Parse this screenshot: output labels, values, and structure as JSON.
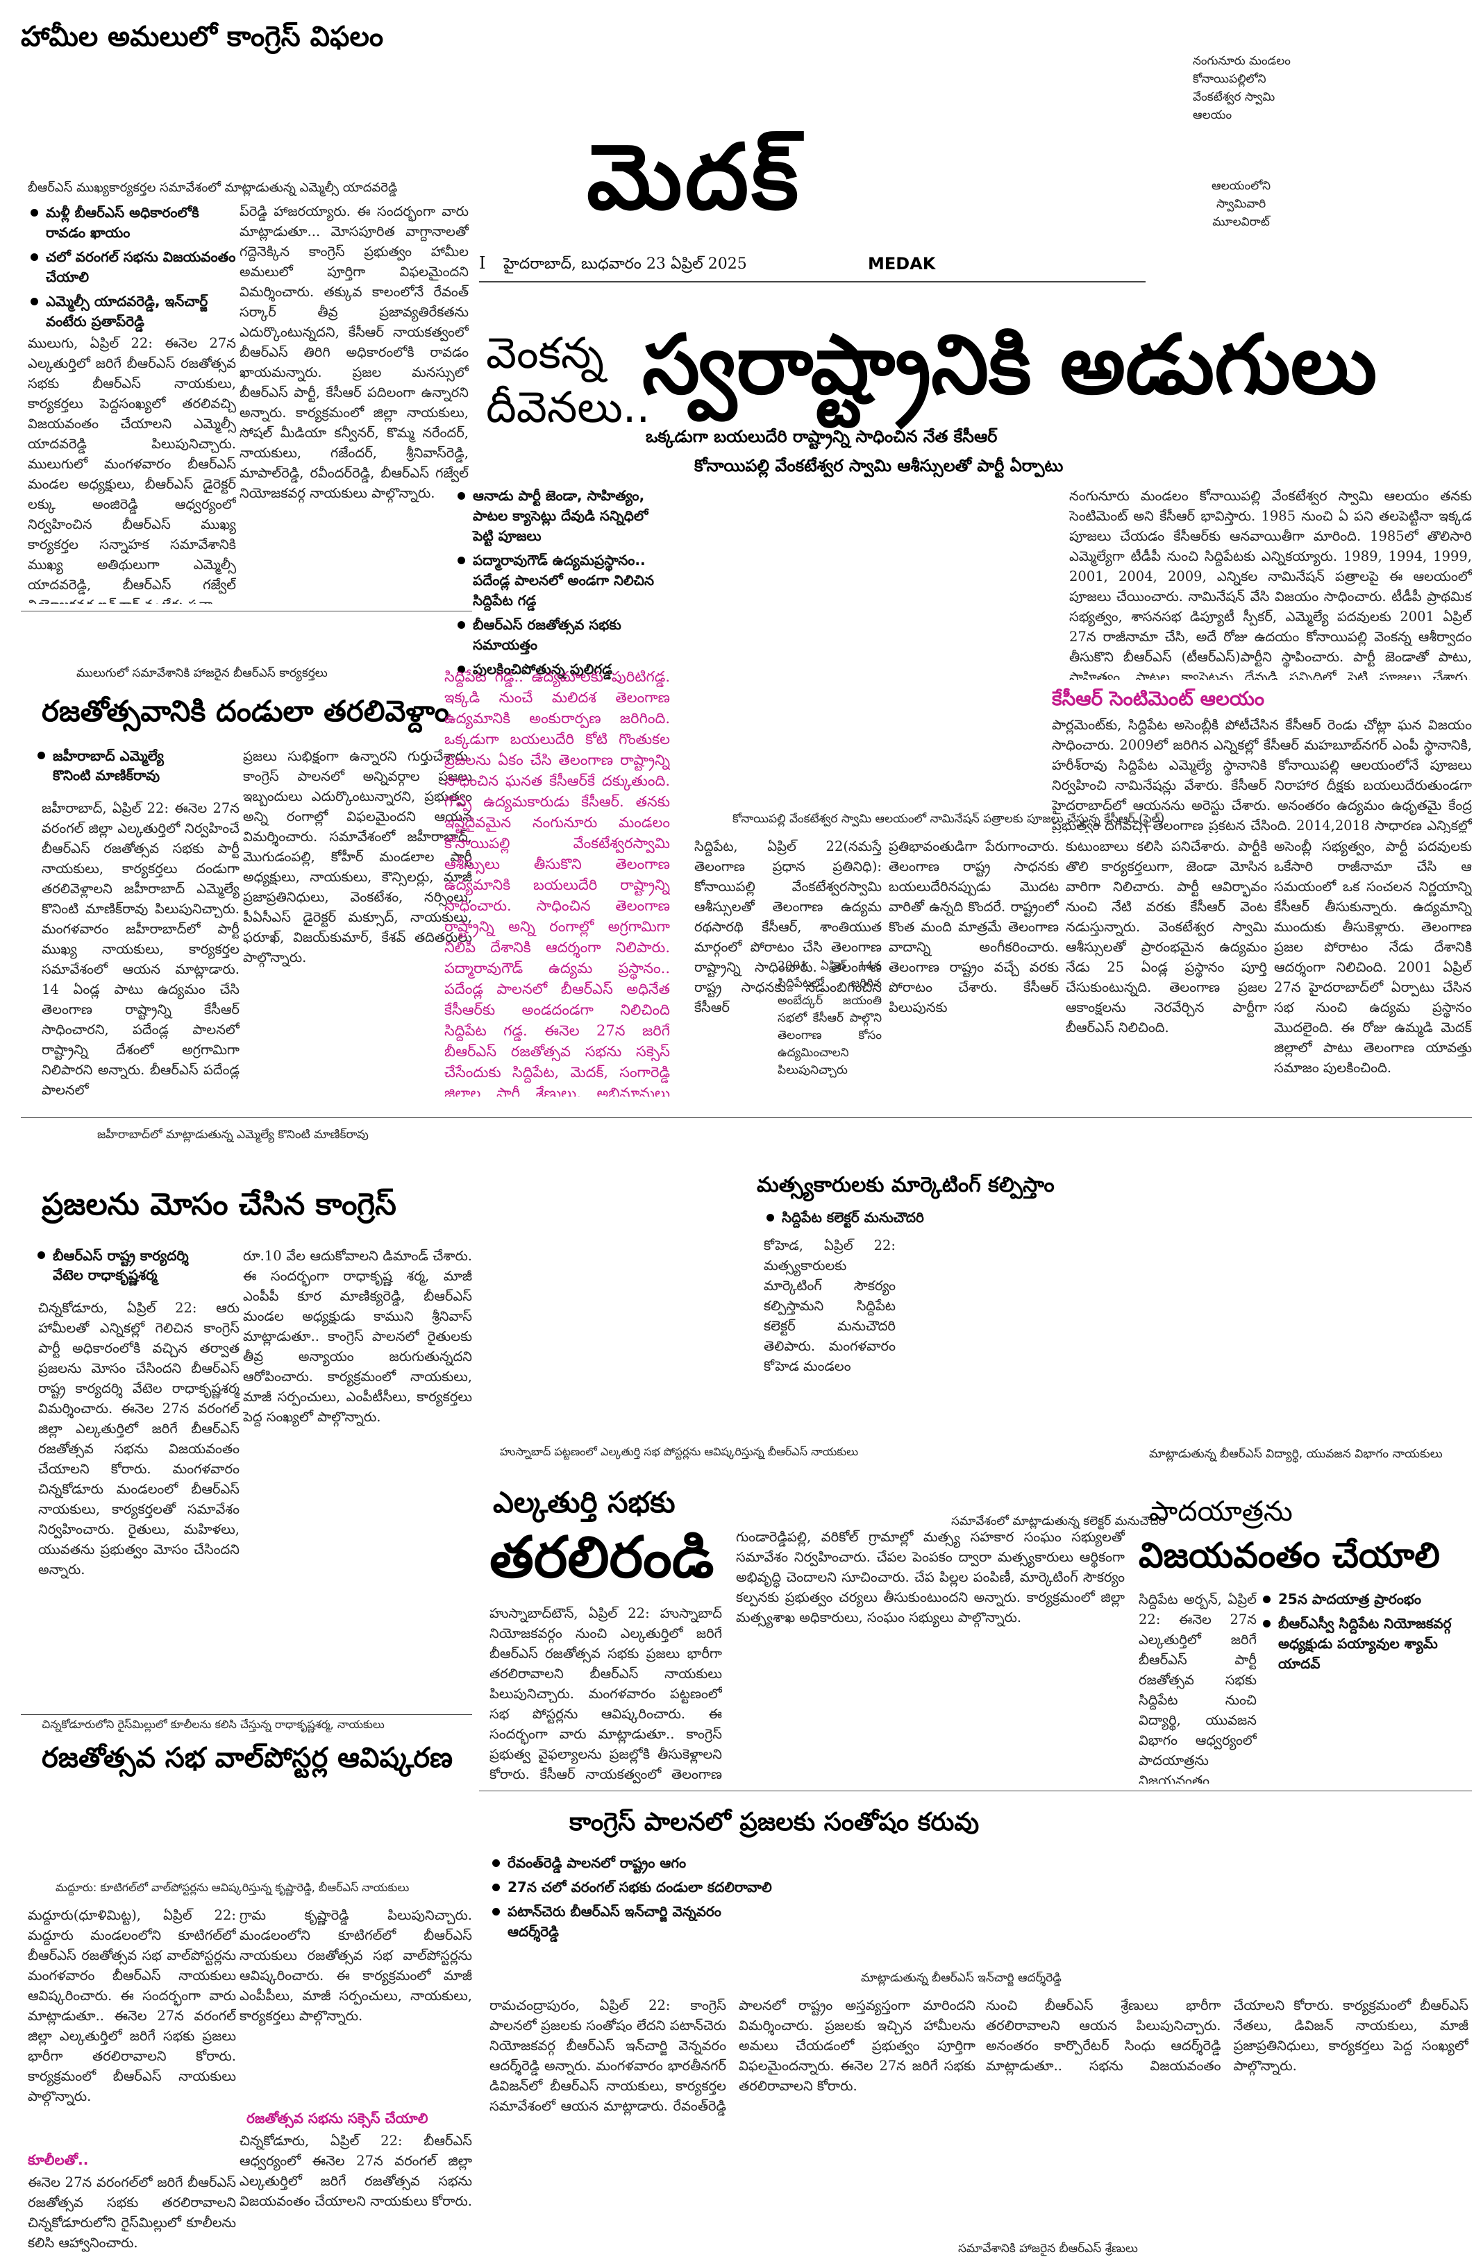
{
  "masthead": {
    "title": "మెదక్",
    "dateline": "హైదరాబాద్, బుధవారం 23 ఏప్రిల్ 2025",
    "edition": "MEDAK",
    "page_mark": "I"
  },
  "top_right_photo_caption": {
    "line1": "నంగునూరు మండలం",
    "line2": "కోనాయిపల్లిలోని",
    "line3": "వేంకటేశ్వర స్వామి",
    "line4": "ఆలయం",
    "inner1": "ఆలయంలోని",
    "inner2": "స్వామివారి",
    "inner3": "మూలవిరాట్"
  },
  "story_congress_failure": {
    "headline": "హామీల అమలులో కాంగ్రెస్ విఫలం",
    "photo_caption": "బీఆర్ఎస్ ముఖ్యకార్యకర్తల సమావేశంలో మాట్లాడుతున్న ఎమ్మెల్సీ యాదవరెడ్డి",
    "bullets": [
      "మళ్లీ బీఆర్ఎస్ అధికారంలోకి రావడం ఖాయం",
      "చలో వరంగల్ సభను విజయవంతం చేయాలి",
      "ఎమ్మెల్సీ యాదవరెడ్డి, ఇన్‌చార్జ్ వంటేరు ప్రతాప్‌రెడ్డి"
    ],
    "body_left": "ములుగు, ఏప్రిల్ 22: ఈనెల 27న ఎల్కతుర్తిలో జరిగే బీఆర్ఎస్ రజతోత్సవ సభకు బీఆర్ఎస్ నాయకులు, కార్యకర్తలు పెద్దసంఖ్యలో తరలివచ్చి విజయవంతం చేయాలని ఎమ్మెల్సీ యాదవరెడ్డి పిలుపునిచ్చారు. ములుగులో మంగళవారం బీఆర్ఎస్ మండల అధ్యక్షులు, బీఆర్ఎస్ డైరెక్టర్ లక్కు అంజిరెడ్డి ఆధ్వర్యంలో నిర్వహించిన బీఆర్ఎస్ ముఖ్య కార్యకర్తల సన్నాహక సమావేశానికి ముఖ్య అతిథులుగా ఎమ్మెల్సీ యాదవరెడ్డి, బీఆర్ఎస్ గజ్వేల్ నియోజకవర్గ ఇన్‌చార్జ్ వంటేరు ప్రతా",
    "body_right": "ప్‌రెడ్డి హాజరయ్యారు. ఈ సందర్భంగా వారు మాట్లాడుతూ... మోసపూరిత వాగ్దానాలతో గద్దెనెక్కిన కాంగ్రెస్ ప్రభుత్వం హామీల అమలులో పూర్తిగా విఫలమైందని విమర్శించారు. తక్కువ కాలంలోనే రేవంత్ సర్కార్ తీవ్ర ప్రజావ్యతిరేకతను ఎదుర్కొంటున్నదని, కేసీఆర్ నాయకత్వంలో బీఆర్ఎస్ తిరిగి అధికారంలోకి రావడం ఖాయమన్నారు. ప్రజల మనస్సులో బీఆర్ఎస్ పార్టీ, కేసీఆర్ పదిలంగా ఉన్నారని అన్నారు. కార్యక్రమంలో జిల్లా నాయకులు, సోషల్ మీడియా కన్వీనర్, కొమ్మ నరేందర్, నాయకులు, గజేందర్, శ్రీనివాస్‌రెడ్డి, మాపాల్‌రెడ్డి, రవీందర్‌రెడ్డి, బీఆర్ఎస్ గజ్వేల్ నియోజకవర్గ నాయకులు పాల్గొన్నారు."
  },
  "photo_mulugu_caption": "ములుగులో సమావేశానికి హాజరైన బీఆర్ఎస్ కార్యకర్తలు",
  "story_dandula": {
    "headline": "రజతోత్సవానికి దండులా తరలివెళ్దాం",
    "byline1": "జహీరాబాద్ ఎమ్మెల్యే",
    "byline2": "కొనింటి మాణిక్‌రావు",
    "body_left": "జహీరాబాద్, ఏప్రిల్ 22: ఈనెల 27న వరంగల్ జిల్లా ఎల్కతుర్తిలో నిర్వహించే బీఆర్ఎస్ రజతోత్సవ సభకు పార్టీ నాయకులు, కార్యకర్తలు దండుగా తరలివెళ్లాలని జహీరాబాద్ ఎమ్మెల్యే కొనింటి మాణిక్‌రావు పిలుపునిచ్చారు. మంగళవారం జహీరాబాద్‌లో పార్టీ ముఖ్య నాయకులు, కార్యకర్తల సమావేశంలో ఆయన మాట్లాడారు. 14 ఏండ్ల పాటు ఉద్యమం చేసి తెలంగాణ రాష్ట్రాన్ని కేసీఆర్ సాధించారని, పదేండ్ల పాలనలో రాష్ట్రాన్ని దేశంలో అగ్రగామిగా నిలిపారని అన్నారు. బీఆర్ఎస్ పదేండ్ల పాలనలో",
    "body_right": "ప్రజలు సుభిక్షంగా ఉన్నారని గుర్తుచేశారు. కాంగ్రెస్ పాలనలో అన్నివర్గాల ప్రజలు ఇబ్బందులు ఎదుర్కొంటున్నారని, ప్రభుత్వం అన్ని రంగాల్లో విఫలమైందని ఆయన విమర్శించారు. సమావేశంలో జహీరాబాద్, మొగుడంపల్లి, కోహీర్ మండలాల పార్టీ అధ్యక్షులు, నాయకులు, కౌన్సిలర్లు, మాజీ ప్రజాప్రతినిధులు, వెంకటేశం, నర్సింలు, పీఏసీఎస్ డైరెక్టర్ మక్సూద్, నాయకులు, ఫరూఖ్, విజయ్‌కుమార్, కేశవ్ తదితరులు పాల్గొన్నారు."
  },
  "main_story": {
    "kicker_line1": "వెంకన్న",
    "kicker_line2": "దీవెనలు..",
    "headline": "స్వరాష్ట్రానికి అడుగులు",
    "sub1": "ఒక్కడుగా బయలుదేరి రాష్ట్రాన్ని సాధించిన నేత కేసీఆర్",
    "sub2": "కోనాయిపల్లి వేంకటేశ్వర స్వామి ఆశీస్సులతో పార్టీ ఏర్పాటు",
    "bullets": [
      "ఆనాడు పార్టీ జెండా, సాహిత్యం, పాటల క్యాసెట్లు దేవుడి సన్నిధిలో పెట్టి పూజలు",
      "పద్మారావుగౌడ్ ఉద్యమప్రస్థానం.. పదేండ్ల పాలనలో అండగా నిలిచిన సిద్దిపేట గడ్డ",
      "బీఆర్ఎస్ రజతోత్సవ సభకు సమాయత్తం",
      "పులకించిపోతున్న పులిగడ్డ"
    ],
    "pink_box": "సిద్దిపేట గడ్డ.. ఉద్యమాలకు పురిటిగడ్డ. ఇక్కడి నుంచే మలిదశ తెలంగాణ ఉద్యమానికి అంకురార్పణ జరిగింది. ఒక్కడుగా బయలుదేరి కోటి గొంతుకల ప్రజలను ఏకం చేసి తెలంగాణ రాష్ట్రాన్ని సాధించిన ఘనత కేసీఆర్‌కే దక్కుతుంది. గొప్ప ఉద్యమకారుడు కేసీఆర్. తనకు ఇష్టదైవమైన నంగునూరు మండలం కోనాయిపల్లి వేంకటేశ్వరస్వామి ఆశీస్సులు తీసుకొని తెలంగాణ ఉద్యమానికి బయలుదేరి రాష్ట్రాన్ని సాధించారు. సాధించిన తెలంగాణ రాష్ట్రాన్ని అన్ని రంగాల్లో అగ్రగామిగా నిలిపి దేశానికి ఆదర్శంగా నిలిపారు. పద్మారావుగౌడ్ ఉద్యమ ప్రస్థానం.. పదేండ్ల పాలనలో బీఆర్ఎస్ అధినేత కేసీఆర్‌కు అండదండగా నిలిచింది సిద్దిపేట గడ్డ. ఈనెల 27న జరిగే బీఆర్ఎస్ రజతోత్సవ సభను సక్సెస్ చేసేందుకు సిద్దిపేట, మెదక్, సంగారెడ్డి జిల్లాల పార్టీ శ్రేణులు, అభిమానులు సిద్ధమవుతున్నారు.",
    "col_right_top": "నంగునూరు మండలం కోనాయిపల్లి వేంకటేశ్వర స్వామి ఆలయం తనకు సెంటిమెంట్ అని కేసీఆర్ భావిస్తారు. 1985 నుంచి ఏ పని తలపెట్టినా ఇక్కడ పూజలు చేయడం కేసీఆర్‌కు ఆనవాయితీగా మారింది. 1985లో తొలిసారి ఎమ్మెల్యేగా టీడీపీ నుంచి సిద్దిపేటకు ఎన్నికయ్యారు. 1989, 1994, 1999, 2001, 2004, 2009, ఎన్నికల నామినేషన్ పత్రాలపై ఈ ఆలయంలో పూజలు చేయించారు. నామినేషన్ వేసి విజయం సాధించారు. టీడీపీ ప్రాథమిక సభ్యత్వం, శాసనసభ డిప్యూటీ స్పీకర్, ఎమ్మెల్యే పదవులకు 2001 ఏప్రిల్ 27న రాజీనామా చేసి, అదే రోజు ఉదయం కోనాయిపల్లి వెంకన్న ఆశీర్వాదం తీసుకొని బీఆర్ఎస్ (టీఆర్ఎస్)పార్టీని స్థాపించారు. పార్టీ జెండాతో పాటు, సాహిత్యం, పాటల క్యాసెట్లను దేవుడి సన్నిధిలో పెట్టి పూజలు చేశారు. అనంతరం భారీ కార్ల ర్యాలీతో హైదరాబాద్‌లోని జలదృశ్యంలో పార్టీని స్థాపించారు. 14 ఏండ్ల తర్వాత తెలంగాణ రాష్ట్రం సాధించారు. 2004లో తెలంగాణ ప్రాంతంలో పోటీ చేస్తున్న బీఆర్ఎస్(టీఆర్ఎస్) ఎమ్మెల్యే అభ్యర్థుల బీ-ఫారాలు కోనాయిపల్లి ఆలయంలో పూజలు చేయించి వారికి అందజేశారు. ఆ ఎన్నికల్లో కరీంనగర్",
    "kcr_sentiment_head": "కేసీఆర్ సెంటిమెంట్ ఆలయం",
    "col_right_mid": "పార్లమెంట్‌కు, సిద్దిపేట అసెంబ్లీకి పోటీచేసిన కేసీఆర్ రెండు చోట్లా ఘన విజయం సాధించారు. 2009లో జరిగిన ఎన్నికల్లో కేసీఆర్ మహబూబ్‌నగర్ ఎంపీ స్థానానికి, హరీశ్‌రావు సిద్దిపేట ఎమ్మెల్యే స్థానానికి కోనాయిపల్లి ఆలయంలోనే పూజలు నిర్వహించి నామినేషన్లు వేశారు. కేసీఆర్ నిరాహార దీక్షకు బయలుదేరుతుండగా హైదరాబాద్‌లో ఆయనను అరెస్టు చేశారు. అనంతరం ఉద్యమం ఉధృతమై కేంద్ర ప్రభుత్వం దిగివచ్చి తెలంగాణ ప్రకటన చేసింది. 2014,2018 సాధారణ ఎన్నికల్లో ప్రతి అక్కడ కేసీఆర్ పూజలు చేసి విజయం సాధించారు. పదేండ్ల పాలనలో రాష్ట్రాన్ని అన్నిరంగాల్లో అగ్రగామిగా నిలిపారు. గత పార్లమెంట్ ఎన్నికల్లో కూడా సిద్దిపేట నియోజకవర్గంలో కేసీఆర్ పూజలు చేయించారు. గజ్వేల్ స్థానం నుంచి పోటీచేసి ఘన విజయం సాధించారు.",
    "photo_caption": "కోనాయిపల్లి వేంకటేశ్వర స్వామి ఆలయంలో నామినేషన్ పత్రాలకు పూజలు చేస్తున్న కేసీఆర్ (ఫైల్)",
    "col_a": "సిద్దిపేట, ఏప్రిల్ 22(నమస్తే తెలంగాణ ప్రధాన ప్రతినిధి): కోనాయిపల్లి వేంకటేశ్వరస్వామి ఆశీస్సులతో తెలంగాణ ఉద్యమ రథసారథి కేసీఆర్, శాంతియుత మార్గంలో పోరాటం చేసి తెలంగాణ రాష్ట్రాన్ని సాధించారు. తెలంగాణ రాష్ట్ర సాధనకు నడుంబిగించిన కేసీఆర్",
    "col_b": "ప్రతిభావంతుడిగా పేరుగాంచారు. తెలంగాణ రాష్ట్ర సాధనకు బయలుదేరినప్పుడు మొదట వారితో ఉన్నది కొందరే. రాష్ట్రంలో కొంత మంది మాత్రమే తెలంగాణ వాదాన్ని అంగీకరించారు. తెలంగాణ రాష్ట్రం వచ్చే వరకు పోరాటం చేశారు. కేసీఆర్ పిలుపునకు",
    "col_c": "కుటుంబాలు కలిసి పనిచేశారు. పార్టీకి తొలి కార్యకర్తలుగా, జెండా మోసిన వారిగా నిలిచారు. పార్టీ ఆవిర్భావం నుంచి నేటి వరకు కేసీఆర్ వెంట నడుస్తున్నారు. వెంకటేశ్వర స్వామి ఆశీస్సులతో ప్రారంభమైన ఉద్యమం నేడు 25 ఏండ్ల ప్రస్థానం పూర్తి చేసుకుంటున్నది. తెలంగాణ ప్రజల ఆకాంక్షలను నెరవేర్చిన పార్టీగా బీఆర్ఎస్ నిలిచింది.",
    "col_d": "అసెంబ్లీ సభ్యత్వం, పార్టీ పదవులకు ఒకేసారి రాజీనామా చేసి ఆ సమయంలో ఒక సంచలన నిర్ణయాన్ని కేసీఆర్ తీసుకున్నారు. ఉద్యమాన్ని ముందుకు తీసుకెళ్లారు. తెలంగాణ ప్రజల పోరాటం నేడు దేశానికి ఆదర్శంగా నిలిచింది. 2001 ఏప్రిల్ 27న హైదరాబాద్‌లో ఏర్పాటు చేసిన సభ నుంచి ఉద్యమ ప్రస్థానం మొదలైంది. ఈ రోజు ఉమ్మడి మెదక్ జిల్లాలో పాటు తెలంగాణ యావత్తు సమాజం పులకించింది.",
    "ahead_note": "2001 ఏప్రిల్ 14న సిద్దిపేటలో జరిగిన అంబేద్కర్ జయంతి సభలో కేసీఆర్ పాల్గొని తెలంగాణ కోసం ఉద్యమించాలని పిలుపునిచ్చారు"
  },
  "story_praja_mosam": {
    "photo_caption": "జహీరాబాద్‌లో మాట్లాడుతున్న ఎమ్మెల్యే కొనింటి మాణిక్‌రావు",
    "headline": "ప్రజలను మోసం చేసిన కాంగ్రెస్",
    "byline1": "బీఆర్ఎస్ రాష్ట్ర కార్యదర్శి",
    "byline2": "వేటెల రాధాకృష్ణశర్మ",
    "body_left": "చిన్నకోడూరు, ఏప్రిల్ 22: ఆరు హామీలతో ఎన్నికల్లో గెలిచిన కాంగ్రెస్ పార్టీ అధికారంలోకి వచ్చిన తర్వాత ప్రజలను మోసం చేసిందని బీఆర్ఎస్ రాష్ట్ర కార్యదర్శి వేటెల రాధాకృష్ణశర్మ విమర్శించారు. ఈనెల 27న వరంగల్ జిల్లా ఎల్కతుర్తిలో జరిగే బీఆర్ఎస్ రజతోత్సవ సభను విజయవంతం చేయాలని కోరారు. మంగళవారం చిన్నకోడూరు మండలంలో బీఆర్ఎస్ నాయకులు, కార్యకర్తలతో సమావేశం నిర్వహించారు. రైతులు, మహిళలు, యువతను ప్రభుత్వం మోసం చేసిందని అన్నారు.",
    "body_right": "రూ.10 వేల ఆదుకోవాలని డిమాండ్ చేశారు. ఈ సందర్భంగా రాధాకృష్ణ శర్మ, మాజీ ఎంపీపీ కూర మాణిక్యరెడ్డి, బీఆర్ఎస్ మండల అధ్యక్షుడు కాముని శ్రీనివాస్ మాట్లాడుతూ.. కాంగ్రెస్ పాలనలో రైతులకు తీవ్ర అన్యాయం జరుగుతున్నదని ఆరోపించారు. కార్యక్రమంలో నాయకులు, మాజీ సర్పంచులు, ఎంపీటీసీలు, కార్యకర్తలు పెద్ద సంఖ్యలో పాల్గొన్నారు."
  },
  "story_fishermen": {
    "headline": "మత్స్యకారులకు మార్కెటింగ్ కల్పిస్తాం",
    "bullet": "సిద్దిపేట కలెక్టర్ మనుచౌదరి",
    "body_left": "కోహెడ, ఏప్రిల్ 22: మత్స్యకారులకు మార్కెటింగ్ సౌకర్యం కల్పిస్తామని సిద్దిపేట కలెక్టర్ మనుచౌదరి తెలిపారు. మంగళవారం కోహెడ మండలం",
    "photo_caption": "సమావేశంలో మాట్లాడుతున్న కలెక్టర్ మనుచౌదరి",
    "body_bottom": "గుండారెడ్డిపల్లి, వరికోల్ గ్రామాల్లో మత్స్య సహకార సంఘం సభ్యులతో సమావేశం నిర్వహించారు. చేపల పెంపకం ద్వారా మత్స్యకారులు ఆర్థికంగా అభివృద్ధి చెందాలని సూచించారు. చేప పిల్లల పంపిణీ, మార్కెటింగ్ సౌకర్యం కల్పనకు ప్రభుత్వం చర్యలు తీసుకుంటుందని అన్నారు. కార్యక్రమంలో జిల్లా మత్స్యశాఖ అధికారులు, సంఘం సభ్యులు పాల్గొన్నారు."
  },
  "story_elkathurthi": {
    "photo_caption": "హుస్నాబాద్ పట్టణంలో ఎల్కతుర్తి సభ పోస్టర్లను ఆవిష్కరిస్తున్న బీఆర్ఎస్ నాయకులు",
    "kicker": "ఎల్కతుర్తి సభకు",
    "headline": "తరలిరండి",
    "body": "హుస్నాబాద్‌టౌన్, ఏప్రిల్ 22: హుస్నాబాద్ నియోజకవర్గం నుంచి ఎల్కతుర్తిలో జరిగే బీఆర్ఎస్ రజతోత్సవ సభకు ప్రజలు భారీగా తరలిరావాలని బీఆర్ఎస్ నాయకులు పిలుపునిచ్చారు. మంగళవారం పట్టణంలో సభ పోస్టర్లను ఆవిష్కరించారు. ఈ సందర్భంగా వారు మాట్లాడుతూ.. కాంగ్రెస్ ప్రభుత్వ వైఫల్యాలను ప్రజల్లోకి తీసుకెళ్లాలని కోరారు. కేసీఆర్ నాయకత్వంలో తెలంగాణ అభివృద్ధి చెందిందని అన్నారు. కార్యక్రమంలో బీఆర్ఎస్ పట్టణ అధ్యక్షుడు, మాజీ కౌన్సిలర్లు, నాయకులు, కార్యకర్తలు పాల్గొన్నారు."
  },
  "story_padayatra": {
    "photo_caption": "మాట్లాడుతున్న బీఆర్ఎస్ విద్యార్థి, యువజన విభాగం నాయకులు",
    "kicker": "పాదయాత్రను",
    "headline": "విజయవంతం చేయాలి",
    "bullets": [
      "25న పాదయాత్ర ప్రారంభం",
      "బీఆర్ఎస్వీ సిద్దిపేట నియోజకవర్గ అధ్యక్షుడు పయ్యావుల శ్యామ్ యాదవ్"
    ],
    "body": "సిద్దిపేట అర్బన్, ఏప్రిల్ 22: ఈనెల 27న ఎల్కతుర్తిలో జరిగే బీఆర్ఎస్ పార్టీ రజతోత్సవ సభకు సిద్దిపేట నుంచి విద్యార్థి, యువజన విభాగం ఆధ్వర్యంలో పాదయాత్రను విజయవంతం చేయాలని బీఆర్ఎస్వీ సిద్దిపేట నియోజకవర్గ అధ్యక్షుడు పయ్యావుల శ్యామ్ యాదవ్ పిలుపునిచ్చారు. మంగళవారం పార్టీ కార్యాలయంలో మాట్లాడారు. ఈనెల 25న ఉదయం పాదయాత్ర ప్రారంభమవుతుందని తెలిపారు. కార్యక్రమంలో నాయకులు పాల్గొన్నారు."
  },
  "story_wallposter": {
    "photo_caption": "చిన్నకోడూరులోని రైస్‌మిల్లులో కూలీలను కలిసి చేస్తున్న రాధాకృష్ణశర్మ, నాయకులు",
    "headline": "రజతోత్సవ సభ వాల్‌పోస్టర్ల ఆవిష్కరణ",
    "photo2_caption": "మద్దూరు: కూటిగల్‌లో వాల్‌పోస్టర్లను ఆవిష్కరిస్తున్న కృష్ణారెడ్డి, బీఆర్ఎస్ నాయకులు",
    "body_left": "మద్దూరు(ధూళిమిట్ట), ఏప్రిల్ 22: మద్దూరు మండలంలోని కూటిగల్‌లో బీఆర్ఎస్ రజతోత్సవ సభ వాల్‌పోస్టర్లను మంగళవారం బీఆర్ఎస్ నాయకులు ఆవిష్కరించారు. ఈ సందర్భంగా వారు మాట్లాడుతూ.. ఈనెల 27న వరంగల్ జిల్లా ఎల్కతుర్తిలో జరిగే సభకు ప్రజలు భారీగా తరలిరావాలని కోరారు. కార్యక్రమంలో బీఆర్ఎస్ నాయకులు పాల్గొన్నారు.",
    "subhead": "కూలీలతో..",
    "body_left2": "ఈనెల 27న వరంగల్‌లో జరిగే బీఆర్ఎస్ రజతోత్సవ సభకు తరలిరావాలని చిన్నకోడూరులోని రైస్‌మిల్లులో కూలీలను కలిసి ఆహ్వానించారు.",
    "body_mid": "గ్రామ కృష్ణారెడ్డి పిలుపునిచ్చారు. మండలంలోని కూటిగల్‌లో బీఆర్ఎస్ నాయకులు రజతోత్సవ సభ వాల్‌పోస్టర్లను ఆవిష్కరించారు. ఈ కార్యక్రమంలో మాజీ ఎంపీపీలు, మాజీ సర్పంచులు, నాయకులు, కార్యకర్తలు పాల్గొన్నారు.",
    "subhead2": "రజతోత్సవ సభను సక్సెస్ చేయాలి",
    "body_mid2": "చిన్నకోడూరు, ఏప్రిల్ 22: బీఆర్ఎస్ ఆధ్వర్యంలో ఈనెల 27న వరంగల్ జిల్లా ఎల్కతుర్తిలో జరిగే రజతోత్సవ సభను విజయవంతం చేయాలని నాయకులు కోరారు."
  },
  "story_congress_rule": {
    "headline": "కాంగ్రెస్ పాలనలో ప్రజలకు సంతోషం కరువు",
    "bullets": [
      "రేవంత్‌రెడ్డి పాలనలో రాష్ట్రం ఆగం",
      "27న చలో వరంగల్ సభకు దండులా కదలిరావాలి",
      "పటాన్‌చెరు బీఆర్ఎస్ ఇన్‌చార్జి వెన్నవరం ఆదర్శ్‌రెడ్డి"
    ],
    "photo_caption": "మాట్లాడుతున్న బీఆర్ఎస్ ఇన్‌చార్జి ఆదర్శ్‌రెడ్డి",
    "body_left": "రామచంద్రాపురం, ఏప్రిల్ 22: కాంగ్రెస్ పాలనలో ప్రజలకు సంతోషం లేదని పటాన్‌చెరు నియోజకవర్గ బీఆర్ఎస్ ఇన్‌చార్జి వెన్నవరం ఆదర్శ్‌రెడ్డి అన్నారు. మంగళవారం భారతీనగర్ డివిజన్‌లో బీఆర్ఎస్ నాయకులు, కార్యకర్తల సమావేశంలో ఆయన మాట్లాడారు. రేవంత్‌రెడ్డి పాలనలో రాష్ట్రం అస్తవ్యస్తంగా మారిందని విమర్శించారు. ప్రజలకు ఇచ్చిన హామీలను అమలు చేయడంలో ప్రభుత్వం పూర్తిగా విఫలమైందన్నారు. ఈనెల 27న జరిగే సభకు తరలిరావాలని కోరారు.",
    "body_right": "నుంచి బీఆర్ఎస్ శ్రేణులు భారీగా తరలిరావాలని ఆయన పిలుపునిచ్చారు. అనంతరం కార్పొరేటర్ సింధు ఆదర్శ్‌రెడ్డి మాట్లాడుతూ.. సభను విజయవంతం చేయాలని కోరారు. కార్యక్రమంలో బీఆర్ఎస్ నేతలు, డివిజన్ నాయకులు, మాజీ ప్రజాప్రతినిధులు, కార్యకర్తలు పెద్ద సంఖ్యలో పాల్గొన్నారు.",
    "bottom_caption": "సమావేశానికి హాజరైన బీఆర్ఎస్ శ్రేణులు"
  }
}
